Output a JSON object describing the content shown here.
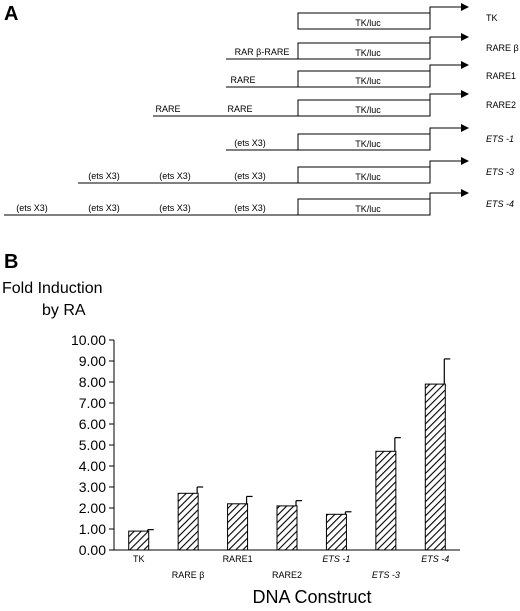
{
  "panel_a": {
    "letter": "A",
    "box_label": "TK/luc",
    "constructs": [
      {
        "name": "TK",
        "italic": false,
        "elements": []
      },
      {
        "name": "RARE β",
        "italic": false,
        "elements": [
          "RAR β-RARE"
        ]
      },
      {
        "name": "RARE1",
        "italic": false,
        "elements": [
          "RARE"
        ]
      },
      {
        "name": "RARE2",
        "italic": false,
        "elements": [
          "RARE",
          "RARE"
        ]
      },
      {
        "name": "ETS -1",
        "italic": true,
        "elements": [
          "(ets X3)"
        ]
      },
      {
        "name": "ETS -3",
        "italic": true,
        "elements": [
          "(ets X3)",
          "(ets X3)",
          "(ets X3)"
        ]
      },
      {
        "name": "ETS -4",
        "italic": true,
        "elements": [
          "(ets X3)",
          "(ets X3)",
          "(ets X3)",
          "(ets X3)"
        ]
      }
    ]
  },
  "panel_b": {
    "letter": "B"
  },
  "chart_data": {
    "type": "bar",
    "title": "",
    "ylabel_line1": "Fold Induction",
    "ylabel_line2": "by RA",
    "xlabel": "DNA Construct",
    "categories": [
      "TK",
      "RARE β",
      "RARE1",
      "RARE2",
      "ETS -1",
      "ETS -3",
      "ETS -4"
    ],
    "italic_categories": [
      false,
      false,
      false,
      false,
      true,
      true,
      true
    ],
    "values": [
      0.9,
      2.7,
      2.2,
      2.1,
      1.7,
      4.7,
      7.9
    ],
    "errors": [
      0.07,
      0.3,
      0.35,
      0.25,
      0.12,
      0.65,
      1.2
    ],
    "ylim": [
      0,
      10
    ],
    "ytick_step": 1,
    "ytick_labels": [
      "0.00",
      "1.00",
      "2.00",
      "3.00",
      "4.00",
      "5.00",
      "6.00",
      "7.00",
      "8.00",
      "9.00",
      "10.00"
    ],
    "bar_pattern": "diagonal-hatch",
    "grid": false,
    "legend": "none"
  }
}
